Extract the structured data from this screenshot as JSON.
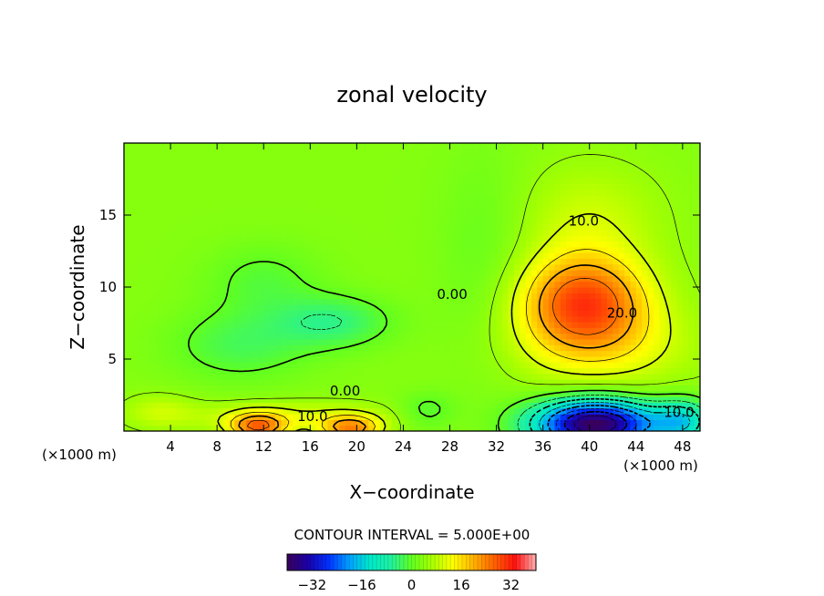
{
  "chart_data": {
    "type": "heatmap",
    "title": "zonal velocity",
    "xlabel": "X−coordinate",
    "ylabel": "Z−coordinate",
    "x_unit_left": "(×1000 m)",
    "x_unit_right": "(×1000 m)",
    "x_ticks": [
      4,
      8,
      12,
      16,
      20,
      24,
      28,
      32,
      36,
      40,
      44,
      48
    ],
    "y_ticks": [
      5,
      10,
      15
    ],
    "xlim": [
      0,
      49.5
    ],
    "ylim": [
      0,
      20
    ],
    "contour_interval_label": "CONTOUR INTERVAL = 5.000E+00",
    "contour_labels": [
      {
        "text": "10.0",
        "x": 39.5,
        "y": 14.6
      },
      {
        "text": "0.00",
        "x": 28.2,
        "y": 9.5
      },
      {
        "text": "20.0",
        "x": 42.8,
        "y": 8.2
      },
      {
        "text": "0.00",
        "x": 19.0,
        "y": 2.8
      },
      {
        "text": "10.0",
        "x": 16.2,
        "y": 1.0
      },
      {
        "text": "−10.0",
        "x": 47.2,
        "y": 1.3
      }
    ],
    "features": [
      {
        "kind": "max",
        "x": 39.5,
        "y": 9.2,
        "value": 28
      },
      {
        "kind": "max",
        "x": 11.5,
        "y": 0.4,
        "value": 26
      },
      {
        "kind": "max",
        "x": 19.5,
        "y": 0.3,
        "value": 22
      },
      {
        "kind": "min",
        "x": 40.0,
        "y": 0.6,
        "value": -38
      },
      {
        "kind": "min",
        "x": 18.0,
        "y": 7.6,
        "value": -4
      },
      {
        "kind": "min",
        "x": 10.0,
        "y": 5.8,
        "value": -3
      }
    ],
    "colorbar": {
      "ticks": [
        -32,
        -16,
        0,
        16,
        32
      ],
      "range": [
        -40,
        40
      ],
      "colors": [
        "#3a005a",
        "#1a00a8",
        "#0030ff",
        "#00a0ff",
        "#00e8c8",
        "#20f0a0",
        "#60ff20",
        "#a8ff00",
        "#ffff00",
        "#ffb000",
        "#ff6000",
        "#ff1010",
        "#ffb0b0"
      ]
    }
  }
}
